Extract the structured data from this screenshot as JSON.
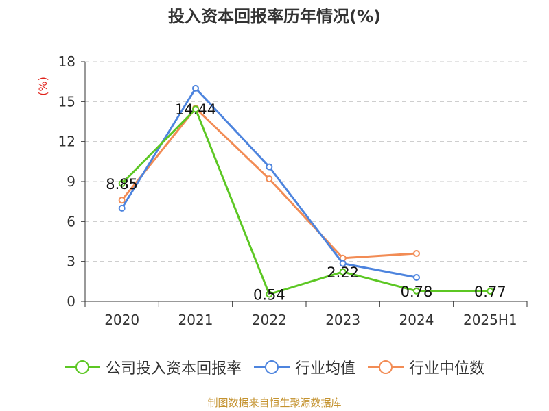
{
  "chart_data": {
    "type": "line",
    "title": "投入资本回报率历年情况(%)",
    "ylabel": "(%)",
    "categories": [
      "2020",
      "2021",
      "2022",
      "2023",
      "2024",
      "2025H1"
    ],
    "ylim": [
      0,
      18
    ],
    "yticks": [
      0,
      3,
      6,
      9,
      12,
      15,
      18
    ],
    "grid": true,
    "legend_position": "bottom",
    "series": [
      {
        "name": "公司投入资本回报率",
        "color": "#5cc723",
        "values": [
          8.85,
          14.44,
          0.54,
          2.22,
          0.78,
          0.77
        ],
        "labels": [
          "8.85",
          "14.44",
          "0.54",
          "2.22",
          "0.78",
          "0.77"
        ]
      },
      {
        "name": "行业均值",
        "color": "#4d84de",
        "values": [
          7.0,
          16.0,
          10.1,
          2.85,
          1.8,
          null
        ]
      },
      {
        "name": "行业中位数",
        "color": "#f28c55",
        "values": [
          7.6,
          14.5,
          9.2,
          3.25,
          3.6,
          null
        ]
      }
    ]
  },
  "legend": {
    "items": [
      "公司投入资本回报率",
      "行业均值",
      "行业中位数"
    ]
  },
  "source": "制图数据来自恒生聚源数据库"
}
